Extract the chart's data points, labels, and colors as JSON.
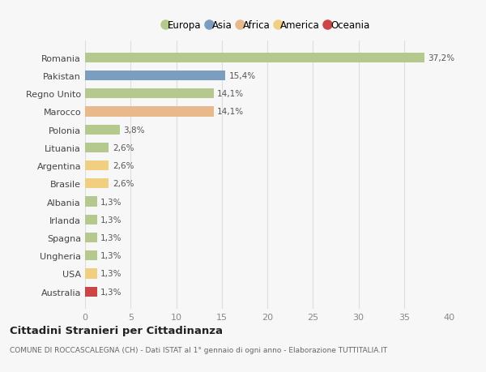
{
  "countries": [
    "Romania",
    "Pakistan",
    "Regno Unito",
    "Marocco",
    "Polonia",
    "Lituania",
    "Argentina",
    "Brasile",
    "Albania",
    "Irlanda",
    "Spagna",
    "Ungheria",
    "USA",
    "Australia"
  ],
  "values": [
    37.2,
    15.4,
    14.1,
    14.1,
    3.8,
    2.6,
    2.6,
    2.6,
    1.3,
    1.3,
    1.3,
    1.3,
    1.3,
    1.3
  ],
  "labels": [
    "37,2%",
    "15,4%",
    "14,1%",
    "14,1%",
    "3,8%",
    "2,6%",
    "2,6%",
    "2,6%",
    "1,3%",
    "1,3%",
    "1,3%",
    "1,3%",
    "1,3%",
    "1,3%"
  ],
  "continents": [
    "Europa",
    "Asia",
    "Europa",
    "Africa",
    "Europa",
    "Europa",
    "America",
    "America",
    "Europa",
    "Europa",
    "Europa",
    "Europa",
    "America",
    "Oceania"
  ],
  "colors": {
    "Europa": "#b5c98e",
    "Asia": "#7b9dc0",
    "Africa": "#e8b98a",
    "America": "#f0d080",
    "Oceania": "#cc4444"
  },
  "legend_order": [
    "Europa",
    "Asia",
    "Africa",
    "America",
    "Oceania"
  ],
  "title": "Cittadini Stranieri per Cittadinanza",
  "subtitle": "COMUNE DI ROCCASCALEGNA (CH) - Dati ISTAT al 1° gennaio di ogni anno - Elaborazione TUTTITALIA.IT",
  "xlim": [
    0,
    40
  ],
  "xticks": [
    0,
    5,
    10,
    15,
    20,
    25,
    30,
    35,
    40
  ],
  "background_color": "#f7f7f7",
  "grid_color": "#dddddd"
}
